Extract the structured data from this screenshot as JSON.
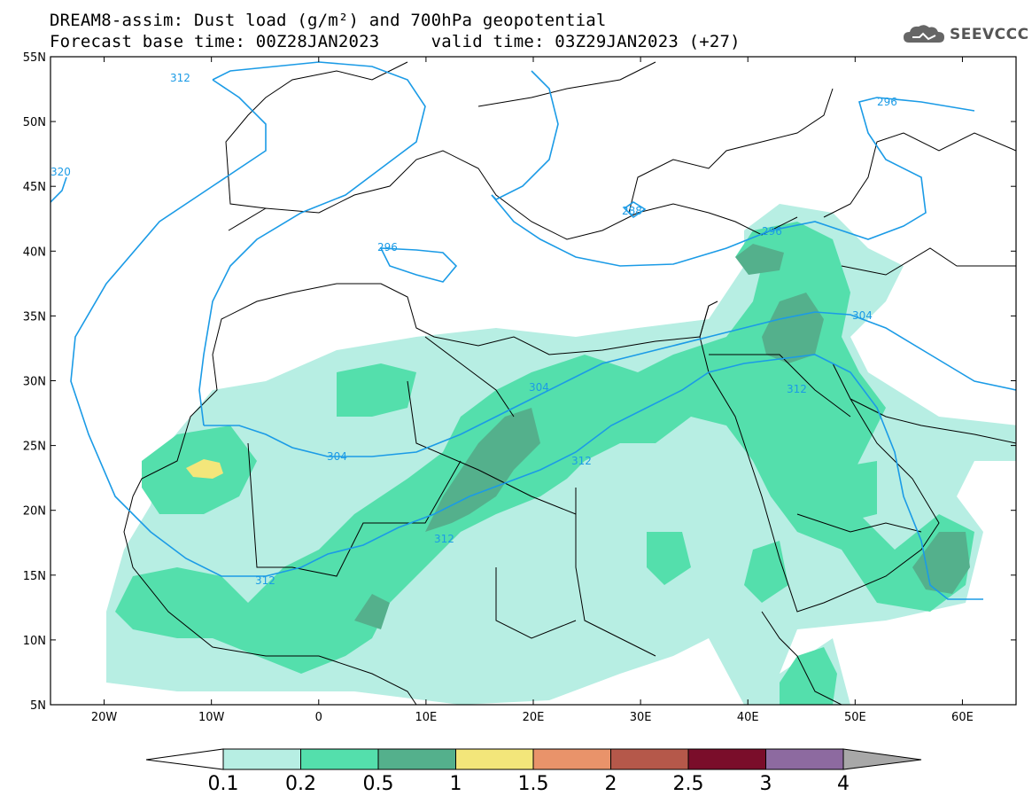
{
  "header": {
    "title_line1": "DREAM8-assim: Dust load (g/m²) and 700hPa geopotential",
    "title_line2": "Forecast base time: 00Z28JAN2023     valid time: 03Z29JAN2023 (+27)",
    "logo_text": "SEEVCCC"
  },
  "map": {
    "lon_range": [
      -25,
      65
    ],
    "lat_range": [
      5,
      55
    ],
    "lat_ticks": [
      "55N",
      "50N",
      "45N",
      "40N",
      "35N",
      "30N",
      "25N",
      "20N",
      "15N",
      "10N",
      "5N"
    ],
    "lon_ticks": [
      "20W",
      "10W",
      "0",
      "10E",
      "20E",
      "30E",
      "40E",
      "50E",
      "60E"
    ],
    "contour_labels": [
      "312",
      "320",
      "296",
      "296",
      "288",
      "296",
      "304",
      "304",
      "312",
      "312",
      "312",
      "312"
    ],
    "contour_color": "#1b9be6"
  },
  "colorbar": {
    "ticks": [
      "0.1",
      "0.2",
      "0.5",
      "1",
      "1.5",
      "2",
      "2.5",
      "3",
      "4"
    ],
    "colors": [
      "#b7eee3",
      "#54dfac",
      "#54b08c",
      "#f3e67a",
      "#e9936a",
      "#b5584a",
      "#7a0d2a",
      "#8d6aa0",
      "#a8a8a8"
    ]
  }
}
